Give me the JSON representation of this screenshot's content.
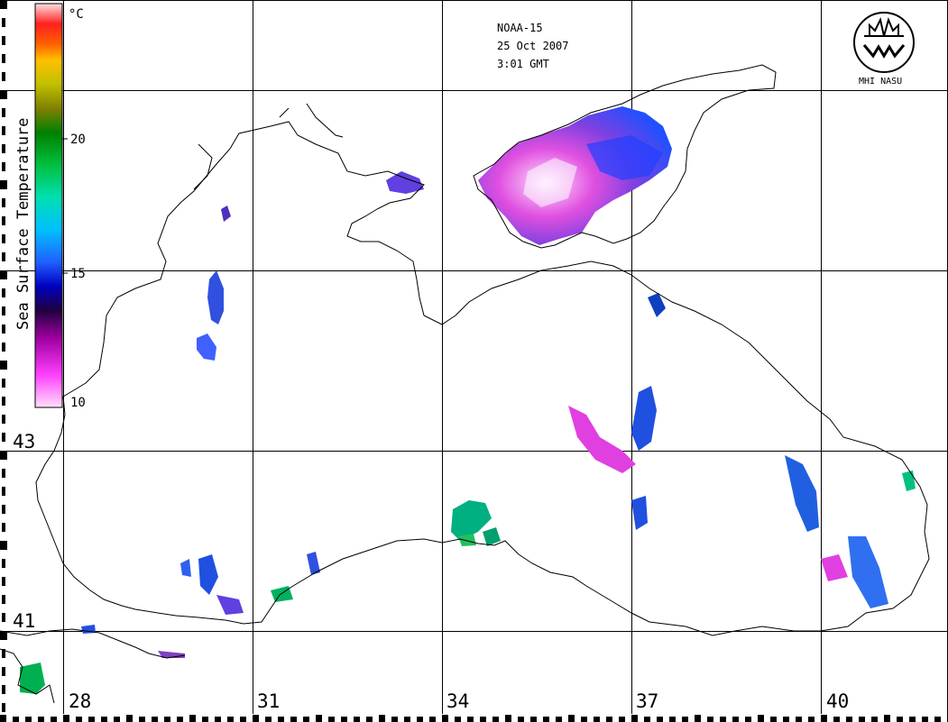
{
  "header": {
    "satellite": "NOAA-15",
    "date": "25 Oct 2007",
    "time": "3:01 GMT",
    "logo_text": "MHI NASU"
  },
  "legend": {
    "title": "Sea Surface Temperature",
    "unit": "°C",
    "ticks": [
      "20",
      "15",
      "10"
    ],
    "colors": [
      "#ffc0e0",
      "#ff40ff",
      "#a000a0",
      "#200040",
      "#0000c0",
      "#2060ff",
      "#00c0ff",
      "#00e0b0",
      "#00c040",
      "#008000",
      "#808000",
      "#c0c000",
      "#ffc000",
      "#ff8000",
      "#ff2000",
      "#ff6060",
      "#ffe0e0"
    ]
  },
  "axes": {
    "lon_labels": [
      "28",
      "31",
      "34",
      "37",
      "40"
    ],
    "lat_labels": [
      "43",
      "41"
    ]
  }
}
